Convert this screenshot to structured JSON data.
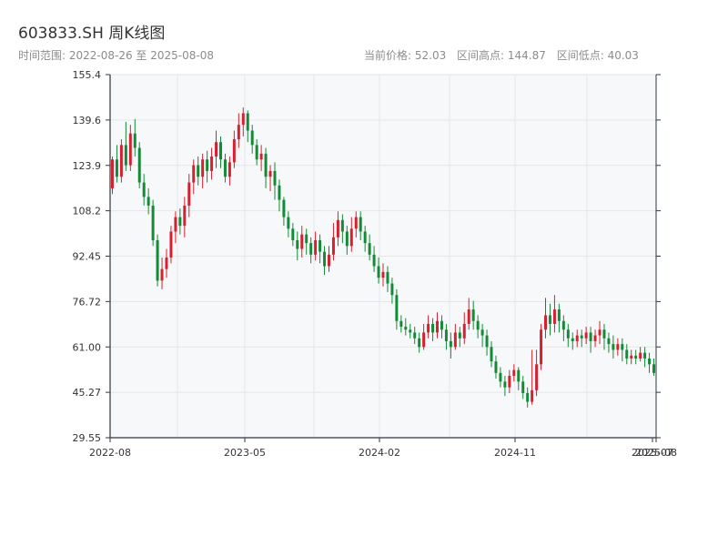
{
  "header": {
    "title": "603833.SH 周K线图",
    "range_text": "时间范围: 2022-08-26 至 2025-08-08",
    "latest_price": "当前价格: 52.03",
    "range_high": "区间高点: 144.87",
    "range_low": "区间低点: 40.03"
  },
  "colors": {
    "up": "#d6202f",
    "down": "#138a36",
    "plot_bg": "#f7f8fa",
    "grid": "#e4e6ea",
    "axis": "#2e3640"
  },
  "chart_data": {
    "type": "candlestick",
    "title": "603833.SH 周K线图",
    "ylim": [
      29.55,
      155.4
    ],
    "y_ticks": [
      "155.4",
      "139.6",
      "123.9",
      "108.2",
      "92.45",
      "76.72",
      "61.00",
      "45.27",
      "29.55"
    ],
    "x_ticks": [
      "2022-08",
      "2023-05",
      "2024-02",
      "2024-11",
      "2025-07",
      "2025-08"
    ],
    "grid": true,
    "candles": [
      [
        116,
        126,
        114,
        127
      ],
      [
        126,
        120,
        118,
        131
      ],
      [
        120,
        131,
        118,
        133
      ],
      [
        131,
        124,
        122,
        139
      ],
      [
        124,
        135,
        122,
        138
      ],
      [
        135,
        130,
        127,
        140
      ],
      [
        130,
        118,
        116,
        132
      ],
      [
        118,
        113,
        110,
        121
      ],
      [
        113,
        110,
        107,
        116
      ],
      [
        110,
        98,
        96,
        112
      ],
      [
        98,
        84,
        82,
        100
      ],
      [
        84,
        88,
        81,
        92
      ],
      [
        88,
        92,
        85,
        95
      ],
      [
        92,
        101,
        90,
        103
      ],
      [
        101,
        106,
        97,
        108
      ],
      [
        106,
        103,
        100,
        109
      ],
      [
        103,
        110,
        99,
        113
      ],
      [
        110,
        118,
        106,
        121
      ],
      [
        118,
        124,
        114,
        126
      ],
      [
        124,
        120,
        117,
        127
      ],
      [
        120,
        126,
        116,
        128
      ],
      [
        126,
        122,
        118,
        129
      ],
      [
        122,
        127,
        119,
        130
      ],
      [
        127,
        132,
        123,
        136
      ],
      [
        132,
        126,
        123,
        134
      ],
      [
        126,
        120,
        118,
        128
      ],
      [
        120,
        125,
        117,
        127
      ],
      [
        125,
        133,
        123,
        136
      ],
      [
        133,
        138,
        130,
        142
      ],
      [
        138,
        142,
        134,
        144
      ],
      [
        142,
        136,
        132,
        143
      ],
      [
        136,
        131,
        128,
        138
      ],
      [
        131,
        126,
        124,
        133
      ],
      [
        126,
        128,
        122,
        131
      ],
      [
        128,
        120,
        116,
        130
      ],
      [
        120,
        122,
        115,
        124
      ],
      [
        122,
        117,
        112,
        125
      ],
      [
        117,
        112,
        108,
        119
      ],
      [
        112,
        106,
        103,
        113
      ],
      [
        106,
        102,
        99,
        108
      ],
      [
        102,
        98,
        96,
        104
      ],
      [
        98,
        95,
        91,
        101
      ],
      [
        95,
        100,
        92,
        103
      ],
      [
        100,
        97,
        93,
        102
      ],
      [
        97,
        93,
        90,
        99
      ],
      [
        93,
        98,
        91,
        101
      ],
      [
        98,
        94,
        90,
        100
      ],
      [
        94,
        89,
        86,
        96
      ],
      [
        89,
        93,
        87,
        96
      ],
      [
        93,
        99,
        91,
        104
      ],
      [
        99,
        105,
        96,
        108
      ],
      [
        105,
        101,
        97,
        107
      ],
      [
        101,
        96,
        93,
        103
      ],
      [
        96,
        102,
        94,
        106
      ],
      [
        102,
        106,
        99,
        108
      ],
      [
        106,
        101,
        98,
        108
      ],
      [
        101,
        97,
        94,
        103
      ],
      [
        97,
        93,
        91,
        100
      ],
      [
        93,
        89,
        87,
        96
      ],
      [
        89,
        85,
        83,
        92
      ],
      [
        85,
        87,
        82,
        90
      ],
      [
        87,
        83,
        80,
        89
      ],
      [
        83,
        79,
        76,
        85
      ],
      [
        79,
        70,
        67,
        81
      ],
      [
        70,
        68,
        66,
        72
      ],
      [
        68,
        67,
        65,
        71
      ],
      [
        67,
        66,
        64,
        69
      ],
      [
        66,
        64,
        62,
        68
      ],
      [
        64,
        61,
        59,
        66
      ],
      [
        61,
        66,
        60,
        69
      ],
      [
        66,
        69,
        64,
        72
      ],
      [
        69,
        66,
        63,
        71
      ],
      [
        66,
        70,
        64,
        73
      ],
      [
        70,
        67,
        64,
        72
      ],
      [
        67,
        63,
        60,
        69
      ],
      [
        63,
        61,
        57,
        66
      ],
      [
        61,
        66,
        60,
        69
      ],
      [
        66,
        64,
        61,
        68
      ],
      [
        64,
        69,
        62,
        73
      ],
      [
        69,
        74,
        67,
        78
      ],
      [
        74,
        70,
        67,
        77
      ],
      [
        70,
        67,
        64,
        72
      ],
      [
        67,
        65,
        61,
        69
      ],
      [
        65,
        61,
        58,
        67
      ],
      [
        61,
        56,
        54,
        63
      ],
      [
        56,
        52,
        50,
        58
      ],
      [
        52,
        49,
        47,
        54
      ],
      [
        49,
        47,
        44,
        51
      ],
      [
        47,
        51,
        45,
        53
      ],
      [
        51,
        53,
        49,
        55
      ],
      [
        53,
        49,
        46,
        54
      ],
      [
        49,
        45,
        43,
        51
      ],
      [
        45,
        42,
        40,
        47
      ],
      [
        42,
        46,
        41,
        60
      ],
      [
        46,
        55,
        44,
        60
      ],
      [
        55,
        67,
        53,
        69
      ],
      [
        67,
        72,
        64,
        78
      ],
      [
        72,
        69,
        65,
        76
      ],
      [
        69,
        74,
        66,
        79
      ],
      [
        74,
        70,
        66,
        76
      ],
      [
        70,
        67,
        63,
        72
      ],
      [
        67,
        64,
        61,
        69
      ],
      [
        64,
        63,
        60,
        66
      ],
      [
        63,
        65,
        61,
        67
      ],
      [
        65,
        64,
        61,
        67
      ],
      [
        64,
        66,
        62,
        68
      ],
      [
        66,
        63,
        59,
        68
      ],
      [
        63,
        65,
        61,
        67
      ],
      [
        65,
        67,
        62,
        70
      ],
      [
        67,
        64,
        60,
        69
      ],
      [
        64,
        62,
        59,
        66
      ],
      [
        62,
        60,
        57,
        65
      ],
      [
        60,
        62,
        58,
        64
      ],
      [
        62,
        60,
        56,
        64
      ],
      [
        60,
        57,
        55,
        62
      ],
      [
        57,
        58,
        55,
        60
      ],
      [
        58,
        57,
        55,
        60
      ],
      [
        57,
        59,
        56,
        61
      ],
      [
        59,
        57,
        54,
        61
      ],
      [
        57,
        55,
        52,
        59
      ],
      [
        55,
        52,
        51,
        57
      ]
    ]
  }
}
